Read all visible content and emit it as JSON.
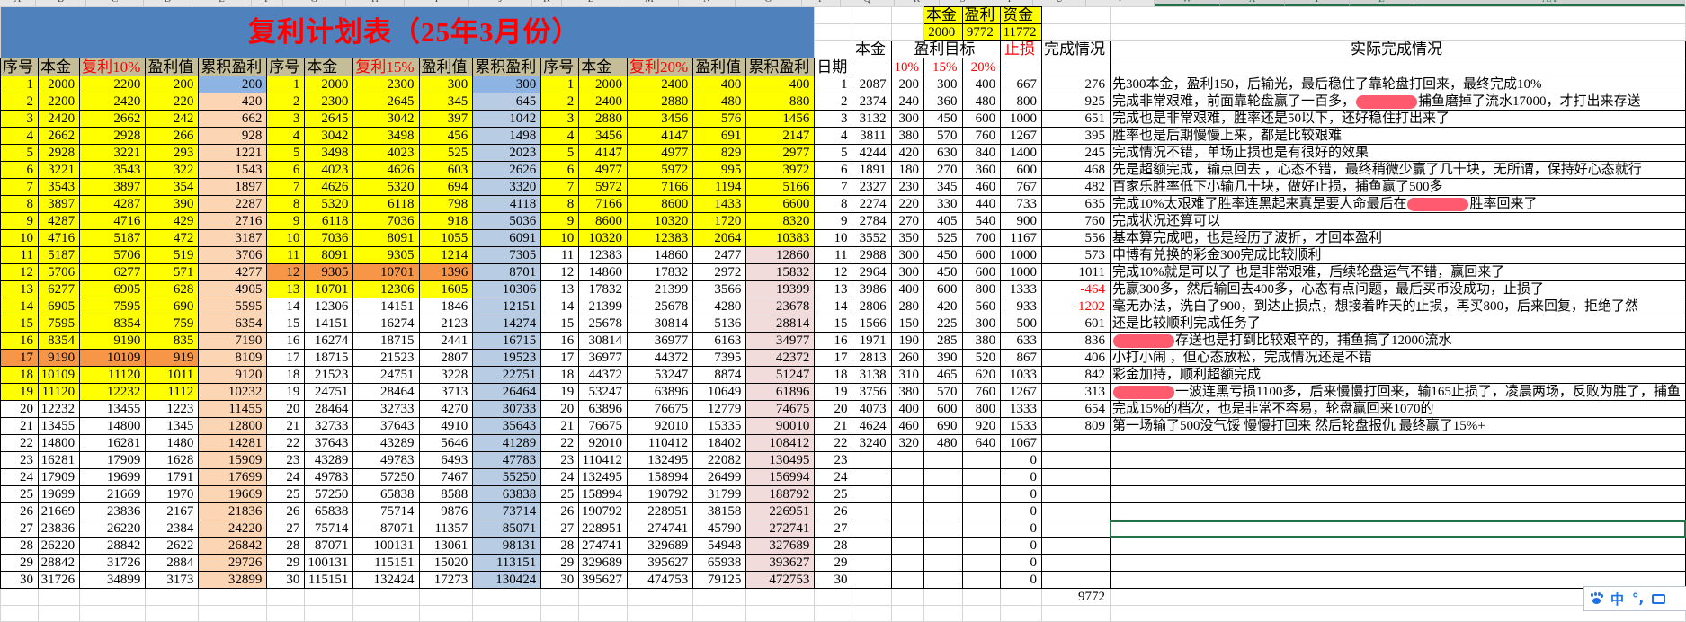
{
  "column_letters": [
    "A",
    "B",
    "C",
    "D",
    "E",
    "F",
    "G",
    "H",
    "I",
    "J",
    "K",
    "L",
    "M",
    "N",
    "O",
    "P",
    "Q",
    "R",
    "S",
    "T",
    "U",
    "V",
    "W",
    "X",
    "Y",
    "Z",
    "AA"
  ],
  "title": "复利计划表（25年3月份）",
  "plan_headers": {
    "seq": "序号",
    "principal": "本金",
    "profit": "盈利值",
    "cumulative": "累积盈利"
  },
  "colors": {
    "yellow": "#FFFF00",
    "orange": "#F79646",
    "title_blue": "#4F81BD",
    "header_tan": "#C4BD97",
    "red": "#FF0000"
  },
  "plans": [
    {
      "rate_label": "复利10%",
      "rows": [
        [
          1,
          2000,
          2200,
          200,
          200
        ],
        [
          2,
          2200,
          2420,
          220,
          420
        ],
        [
          3,
          2420,
          2662,
          242,
          662
        ],
        [
          4,
          2662,
          2928,
          266,
          928
        ],
        [
          5,
          2928,
          3221,
          293,
          1221
        ],
        [
          6,
          3221,
          3543,
          322,
          1543
        ],
        [
          7,
          3543,
          3897,
          354,
          1897
        ],
        [
          8,
          3897,
          4287,
          390,
          2287
        ],
        [
          9,
          4287,
          4716,
          429,
          2716
        ],
        [
          10,
          4716,
          5187,
          472,
          3187
        ],
        [
          11,
          5187,
          5706,
          519,
          3706
        ],
        [
          12,
          5706,
          6277,
          571,
          4277
        ],
        [
          13,
          6277,
          6905,
          628,
          4905
        ],
        [
          14,
          6905,
          7595,
          690,
          5595
        ],
        [
          15,
          7595,
          8354,
          759,
          6354
        ],
        [
          16,
          8354,
          9190,
          835,
          7190
        ],
        [
          17,
          9190,
          10109,
          919,
          8109
        ],
        [
          18,
          10109,
          11120,
          1011,
          9120
        ],
        [
          19,
          11120,
          12232,
          1112,
          10232
        ],
        [
          20,
          12232,
          13455,
          1223,
          11455
        ],
        [
          21,
          13455,
          14800,
          1345,
          12800
        ],
        [
          22,
          14800,
          16281,
          1480,
          14281
        ],
        [
          23,
          16281,
          17909,
          1628,
          15909
        ],
        [
          24,
          17909,
          19699,
          1791,
          17699
        ],
        [
          25,
          19699,
          21669,
          1970,
          19669
        ],
        [
          26,
          21669,
          23836,
          2167,
          21836
        ],
        [
          27,
          23836,
          26220,
          2384,
          24220
        ],
        [
          28,
          26220,
          28842,
          2622,
          26842
        ],
        [
          29,
          28842,
          31726,
          2884,
          29726
        ],
        [
          30,
          31726,
          34899,
          3173,
          32899
        ]
      ]
    },
    {
      "rate_label": "复利15%",
      "rows": [
        [
          1,
          2000,
          2300,
          300,
          300
        ],
        [
          2,
          2300,
          2645,
          345,
          645
        ],
        [
          3,
          2645,
          3042,
          397,
          1042
        ],
        [
          4,
          3042,
          3498,
          456,
          1498
        ],
        [
          5,
          3498,
          4023,
          525,
          2023
        ],
        [
          6,
          4023,
          4626,
          603,
          2626
        ],
        [
          7,
          4626,
          5320,
          694,
          3320
        ],
        [
          8,
          5320,
          6118,
          798,
          4118
        ],
        [
          9,
          6118,
          7036,
          918,
          5036
        ],
        [
          10,
          7036,
          8091,
          1055,
          6091
        ],
        [
          11,
          8091,
          9305,
          1214,
          7305
        ],
        [
          12,
          9305,
          10701,
          1396,
          8701
        ],
        [
          13,
          10701,
          12306,
          1605,
          10306
        ],
        [
          14,
          12306,
          14151,
          1846,
          12151
        ],
        [
          15,
          14151,
          16274,
          2123,
          14274
        ],
        [
          16,
          16274,
          18715,
          2441,
          16715
        ],
        [
          17,
          18715,
          21523,
          2807,
          19523
        ],
        [
          18,
          21523,
          24751,
          3228,
          22751
        ],
        [
          19,
          24751,
          28464,
          3713,
          26464
        ],
        [
          20,
          28464,
          32733,
          4270,
          30733
        ],
        [
          21,
          32733,
          37643,
          4910,
          35643
        ],
        [
          22,
          37643,
          43289,
          5646,
          41289
        ],
        [
          23,
          43289,
          49783,
          6493,
          47783
        ],
        [
          24,
          49783,
          57250,
          7467,
          55250
        ],
        [
          25,
          57250,
          65838,
          8588,
          63838
        ],
        [
          26,
          65838,
          75714,
          9876,
          73714
        ],
        [
          27,
          75714,
          87071,
          11357,
          85071
        ],
        [
          28,
          87071,
          100131,
          13061,
          98131
        ],
        [
          29,
          100131,
          115151,
          15020,
          113151
        ],
        [
          30,
          115151,
          132424,
          17273,
          130424
        ]
      ]
    },
    {
      "rate_label": "复利20%",
      "rows": [
        [
          1,
          2000,
          2400,
          400,
          400
        ],
        [
          2,
          2400,
          2880,
          480,
          880
        ],
        [
          3,
          2880,
          3456,
          576,
          1456
        ],
        [
          4,
          3456,
          4147,
          691,
          2147
        ],
        [
          5,
          4147,
          4977,
          829,
          2977
        ],
        [
          6,
          4977,
          5972,
          995,
          3972
        ],
        [
          7,
          5972,
          7166,
          1194,
          5166
        ],
        [
          8,
          7166,
          8600,
          1433,
          6600
        ],
        [
          9,
          8600,
          10320,
          1720,
          8320
        ],
        [
          10,
          10320,
          12383,
          2064,
          10383
        ],
        [
          11,
          12383,
          14860,
          2477,
          12860
        ],
        [
          12,
          14860,
          17832,
          2972,
          15832
        ],
        [
          13,
          17832,
          21399,
          3566,
          19399
        ],
        [
          14,
          21399,
          25678,
          4280,
          23678
        ],
        [
          15,
          25678,
          30814,
          5136,
          28814
        ],
        [
          16,
          30814,
          36977,
          6163,
          34977
        ],
        [
          17,
          36977,
          44372,
          7395,
          42372
        ],
        [
          18,
          44372,
          53247,
          8874,
          51247
        ],
        [
          19,
          53247,
          63896,
          10649,
          61896
        ],
        [
          20,
          63896,
          76675,
          12779,
          74675
        ],
        [
          21,
          76675,
          92010,
          15335,
          90010
        ],
        [
          22,
          92010,
          110412,
          18402,
          108412
        ],
        [
          23,
          110412,
          132495,
          22082,
          130495
        ],
        [
          24,
          132495,
          158994,
          26499,
          156994
        ],
        [
          25,
          158994,
          190792,
          31799,
          188792
        ],
        [
          26,
          190792,
          228951,
          38158,
          226951
        ],
        [
          27,
          228951,
          274741,
          45790,
          272741
        ],
        [
          28,
          274741,
          329689,
          54948,
          327689
        ],
        [
          29,
          329689,
          395627,
          65938,
          393627
        ],
        [
          30,
          395627,
          474753,
          79125,
          472753
        ]
      ]
    }
  ],
  "summary": {
    "labels": [
      "本金",
      "盈利",
      "资金"
    ],
    "values": [
      2000,
      9772,
      11772
    ]
  },
  "log_headers": {
    "date": "日期",
    "principal": "本金",
    "target": "盈利目标",
    "target_rates": [
      "10%",
      "15%",
      "20%"
    ],
    "stop_loss": "止损",
    "done": "完成情况",
    "actual": "实际完成情况"
  },
  "log_rows": [
    [
      1,
      2087,
      200,
      300,
      400,
      667,
      276
    ],
    [
      2,
      2374,
      240,
      360,
      480,
      800,
      925
    ],
    [
      3,
      3132,
      300,
      450,
      600,
      1000,
      651
    ],
    [
      4,
      3811,
      380,
      570,
      760,
      1267,
      395
    ],
    [
      5,
      4244,
      420,
      630,
      840,
      1400,
      245
    ],
    [
      6,
      1891,
      180,
      270,
      360,
      600,
      468
    ],
    [
      7,
      2327,
      230,
      345,
      460,
      767,
      482
    ],
    [
      8,
      2274,
      220,
      330,
      440,
      733,
      635
    ],
    [
      9,
      2784,
      270,
      405,
      540,
      900,
      760
    ],
    [
      10,
      3552,
      350,
      525,
      700,
      1167,
      556
    ],
    [
      11,
      2988,
      300,
      450,
      600,
      1000,
      573
    ],
    [
      12,
      2964,
      300,
      450,
      600,
      1000,
      1011
    ],
    [
      13,
      3986,
      400,
      600,
      800,
      1333,
      -464
    ],
    [
      14,
      2806,
      280,
      420,
      560,
      933,
      -1202
    ],
    [
      15,
      1566,
      150,
      225,
      300,
      500,
      601
    ],
    [
      16,
      1971,
      190,
      285,
      380,
      633,
      836
    ],
    [
      17,
      2813,
      260,
      390,
      520,
      867,
      406
    ],
    [
      18,
      3138,
      310,
      465,
      620,
      1033,
      842
    ],
    [
      19,
      3756,
      380,
      570,
      760,
      1267,
      313
    ],
    [
      20,
      4073,
      400,
      600,
      800,
      1333,
      654
    ],
    [
      21,
      4624,
      460,
      690,
      920,
      1533,
      809
    ],
    [
      22,
      3240,
      320,
      480,
      640,
      1067,
      null
    ],
    [
      23,
      null,
      null,
      null,
      null,
      0,
      null
    ],
    [
      24,
      null,
      null,
      null,
      null,
      0,
      null
    ],
    [
      25,
      null,
      null,
      null,
      null,
      0,
      null
    ],
    [
      26,
      null,
      null,
      null,
      null,
      0,
      null
    ],
    [
      27,
      null,
      null,
      null,
      null,
      0,
      null
    ],
    [
      28,
      null,
      null,
      null,
      null,
      0,
      null
    ],
    [
      29,
      null,
      null,
      null,
      null,
      0,
      null
    ],
    [
      30,
      null,
      null,
      null,
      null,
      0,
      null
    ]
  ],
  "done_total": 9772,
  "notes": [
    {
      "pre": "先300本金，盈利150，后输光，最后稳住了靠轮盘打回来，最终完成10%"
    },
    {
      "pre": "完成非常艰难，前面靠轮盘赢了一百多，",
      "redacted": true,
      "post": "捕鱼磨掉了流水17000，才打出来存送"
    },
    {
      "pre": "完成也是非常艰难，胜率还是50以下，还好稳住打出来了"
    },
    {
      "pre": "胜率也是后期慢慢上来，都是比较艰难"
    },
    {
      "pre": "完成情况不错，单场止损也是有很好的效果"
    },
    {
      "pre": "先是超额完成，输点回去 ，心态不错，最终稍微少赢了几十块，无所谓，保持好心态就行"
    },
    {
      "pre": "百家乐胜率低下小输几十块，做好止损，捕鱼赢了500多"
    },
    {
      "pre": "完成10%太艰难了胜率连黑起来真是要人命最后在",
      "redacted": true,
      "post": "胜率回来了"
    },
    {
      "pre": "完成状况还算可以"
    },
    {
      "pre": "基本算完成吧，也是经历了波折，才回本盈利"
    },
    {
      "pre": "申博有兑换的彩金300完成比较顺利"
    },
    {
      "pre": "完成10%就是可以了 也是非常艰难，后续轮盘运气不错，赢回来了"
    },
    {
      "pre": "先赢300多，然后输回去400多，心态有点问题，最后买币没成功，止损了"
    },
    {
      "pre": "毫无办法，洗白了900，到达止损点，想接着昨天的止损，再买800，后来回复，拒绝了然"
    },
    {
      "pre": "还是比较顺利完成任务了"
    },
    {
      "pre": "",
      "redacted": true,
      "post": "存送也是打到比较艰辛的，捕鱼搞了12000流水"
    },
    {
      "pre": "小打小闹 ，但心态放松，完成情况还是不错"
    },
    {
      "pre": "彩金加持，顺利超额完成"
    },
    {
      "pre": "",
      "redacted": true,
      "post": "一波连黑亏损1100多，后来慢慢打回来，输165止损了，凌晨两场，反败为胜了，捕鱼"
    },
    {
      "pre": "完成15%的档次，也是非常不容易，轮盘赢回来1070的"
    },
    {
      "pre": "第一场输了500没气馁 慢慢打回来 然后轮盘报仇 最终赢了15%+"
    }
  ],
  "ime_toolbar": {
    "icons": [
      "paw-icon",
      "chinese-mode-icon",
      "punctuation-icon",
      "toolbox-icon"
    ],
    "mode_label": "中",
    "punct_label": "°,"
  }
}
